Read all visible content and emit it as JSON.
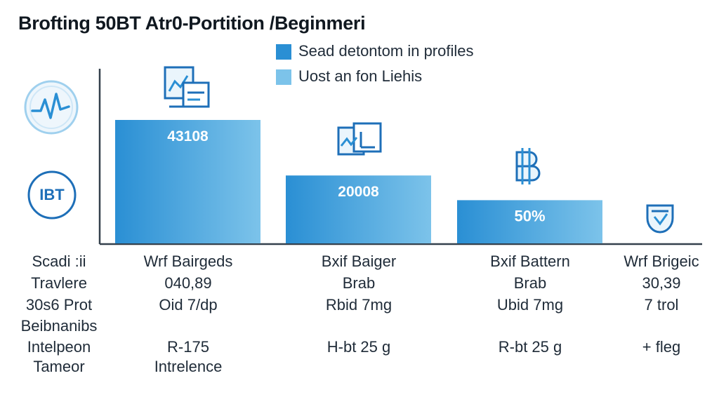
{
  "title": "Brofting 50BT Atr0-Portition /Beginmeri",
  "legend": [
    {
      "label": "Sead detontom in profiles",
      "color": "#2a8fd4"
    },
    {
      "label": "Uost an fon Liehis",
      "color": "#7cc3ea"
    }
  ],
  "side_badges": {
    "top_icon": "heartbeat-circle-icon",
    "bottom_label": "IBT"
  },
  "chart_data": {
    "type": "bar",
    "title": "Brofting 50BT Atr0-Portition /Beginmeri",
    "xlabel": "",
    "ylabel": "",
    "ylim": [
      0,
      100
    ],
    "grid": false,
    "legend_position": "top",
    "categories": [
      "Wrf Bairgeds",
      "Bxif Baiger",
      "Bxif Battern",
      "Wrf Brigeic"
    ],
    "values": [
      100,
      55,
      35,
      0
    ],
    "bar_labels": [
      "43108",
      "20008",
      "50%",
      ""
    ],
    "bar_icons": [
      "chart-board-icon",
      "chart-frame-icon",
      "bitcoin-icon",
      "shield-icon"
    ],
    "colors": {
      "bar_dark": "#2a8fd4",
      "bar_light": "#7cc3ea",
      "axis": "#34404c"
    }
  },
  "table": {
    "row_labels": [
      "Scadi :ii",
      "Travlere",
      "30s6 Prot",
      "Beibnanibs",
      "Intelpeon",
      "Tameor"
    ],
    "columns": [
      [
        "Wrf Bairgeds",
        "040,89",
        "Oid 7/dp",
        "R-175",
        "Intrelence"
      ],
      [
        "Bxif Baiger",
        "Brab",
        "Rbid 7mg",
        "H-bt 25 g"
      ],
      [
        "Bxif Battern",
        "Brab",
        "Ubid 7mg",
        "R-bt 25 g"
      ],
      [
        "Wrf Brigeic",
        "30,39",
        "7 trol",
        "+ fleg"
      ]
    ]
  }
}
